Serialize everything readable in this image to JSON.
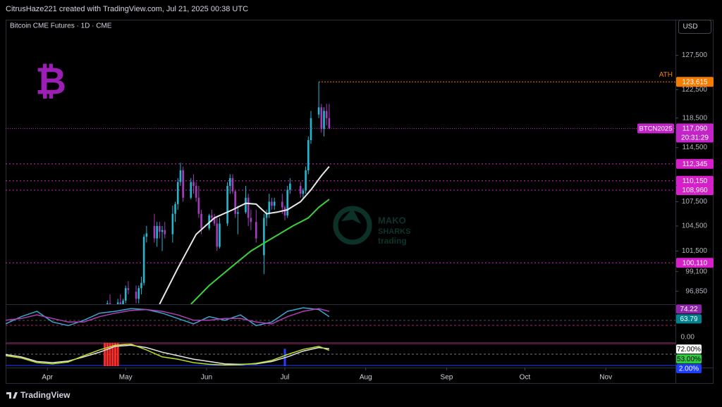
{
  "header": "CitrusHaze221 created with TradingView.com, Jul 21, 2025 00:38 UTC",
  "footer": "TradingView",
  "chart_data": {
    "type": "candlestick",
    "title": "Bitcoin CME Futures · 1D · CME",
    "currency": "USD",
    "watermark": {
      "symbol": "₿",
      "brand": [
        "MAKO",
        "SHARKS",
        "trading"
      ]
    },
    "log": true,
    "grid": false,
    "up_color": "#22b8cf",
    "down_color": "#a73cbc",
    "xlim": [
      -16,
      240.7
    ],
    "xticks": [
      {
        "value": 0,
        "label": "Apr"
      },
      {
        "value": 30,
        "label": "May"
      },
      {
        "value": 61,
        "label": "Jun"
      },
      {
        "value": 91,
        "label": "Jul"
      },
      {
        "value": 122,
        "label": "Aug"
      },
      {
        "value": 153,
        "label": "Sep"
      },
      {
        "value": 183,
        "label": "Oct"
      },
      {
        "value": 214,
        "label": "Nov"
      }
    ],
    "ylim": [
      95400,
      132900
    ],
    "yticks": [
      {
        "value": 96850,
        "label": "96,850"
      },
      {
        "value": 99100,
        "label": "99,100"
      },
      {
        "value": 101500,
        "label": "101,500"
      },
      {
        "value": 104500,
        "label": "104,500"
      },
      {
        "value": 107500,
        "label": "107,500"
      },
      {
        "value": 114500,
        "label": "114,500"
      },
      {
        "value": 118500,
        "label": "118,500"
      },
      {
        "value": 122500,
        "label": "122,500"
      },
      {
        "value": 127500,
        "label": "127,500"
      }
    ],
    "x": [
      23,
      24,
      27,
      28,
      29,
      30,
      31,
      34,
      35,
      36,
      37,
      38,
      41,
      42,
      43,
      44,
      45,
      48,
      49,
      50,
      51,
      52,
      55,
      56,
      57,
      58,
      59,
      62,
      63,
      64,
      65,
      66,
      69,
      70,
      71,
      72,
      73,
      76,
      77,
      78,
      80,
      83,
      84,
      85,
      86,
      87,
      90,
      91,
      92,
      93,
      97,
      98,
      99,
      100,
      101,
      104,
      105,
      106,
      107,
      108
    ],
    "open": [
      94500,
      95500,
      95200,
      95600,
      95000,
      95800,
      97200,
      96800,
      96000,
      97200,
      97800,
      103200,
      104500,
      103000,
      104500,
      103800,
      104000,
      103500,
      106000,
      107200,
      110000,
      111500,
      108000,
      110000,
      109500,
      108000,
      106000,
      104200,
      105800,
      105500,
      104800,
      102000,
      104800,
      109500,
      110500,
      108800,
      106000,
      106200,
      108000,
      105500,
      105000,
      101000,
      105500,
      106000,
      107500,
      107000,
      107500,
      106800,
      105800,
      109000,
      109500,
      108500,
      108900,
      111500,
      115500,
      119000,
      120000,
      117000,
      119500,
      118500
    ],
    "high": [
      95800,
      96500,
      96000,
      96500,
      96000,
      97500,
      98000,
      97500,
      97500,
      98500,
      103500,
      104500,
      106000,
      105000,
      105000,
      104500,
      105000,
      107000,
      107500,
      110500,
      112500,
      112000,
      110500,
      111000,
      110000,
      109500,
      106500,
      106000,
      106500,
      106000,
      105500,
      105500,
      110000,
      111000,
      111000,
      109000,
      107000,
      109500,
      108500,
      106500,
      106500,
      106000,
      106500,
      108500,
      108000,
      108000,
      108500,
      107000,
      109500,
      110500,
      110000,
      109200,
      112000,
      116000,
      119500,
      123615,
      120500,
      120000,
      120500,
      120500
    ],
    "low": [
      93800,
      94800,
      94000,
      94800,
      93500,
      95500,
      96500,
      95500,
      95500,
      96500,
      97500,
      102500,
      102500,
      102000,
      103000,
      101500,
      103000,
      102500,
      105000,
      106500,
      109500,
      107500,
      107800,
      108500,
      107500,
      105500,
      103500,
      104000,
      105000,
      104500,
      101500,
      101800,
      104500,
      108500,
      108500,
      105500,
      103500,
      106000,
      104500,
      104000,
      102500,
      98800,
      104500,
      105500,
      106500,
      106500,
      106000,
      105200,
      105500,
      108500,
      108000,
      108000,
      108500,
      111000,
      115000,
      118500,
      116500,
      116000,
      117500,
      117000
    ],
    "close": [
      95500,
      95200,
      95600,
      95000,
      95800,
      97200,
      97000,
      96000,
      97200,
      97800,
      103200,
      103600,
      103000,
      104500,
      103800,
      104000,
      103500,
      106000,
      107200,
      110000,
      111500,
      108000,
      110000,
      109500,
      108000,
      106000,
      104200,
      105800,
      105500,
      104800,
      102000,
      104800,
      109500,
      110500,
      108800,
      106000,
      106200,
      108000,
      105500,
      105000,
      103000,
      105500,
      106000,
      107500,
      107000,
      107500,
      106800,
      105800,
      109000,
      109800,
      108500,
      108900,
      111500,
      115500,
      118500,
      120000,
      117000,
      119500,
      118500,
      117090
    ],
    "overlays": [
      {
        "color": "#e8e8e8",
        "x": [
          43,
          50,
          57,
          64,
          71,
          76,
          80,
          84,
          88,
          92,
          97,
          101,
          105,
          108
        ],
        "values": [
          95400,
          99500,
          103500,
          105500,
          106500,
          107300,
          107200,
          106000,
          106200,
          106500,
          107500,
          109000,
          110800,
          112000
        ]
      },
      {
        "color": "#3ccf3c",
        "x": [
          55,
          62,
          70,
          78,
          86,
          94,
          100,
          104,
          108
        ],
        "values": [
          95400,
          97500,
          99500,
          101500,
          103000,
          104500,
          105500,
          106800,
          107800
        ]
      }
    ],
    "ath": {
      "value": 123615,
      "label": "123,615",
      "text": "ATH",
      "color": "#f57c00"
    },
    "last": {
      "value": 117090,
      "label": "117,090",
      "symbol": "BTCN2025",
      "countdown": "20:31:29",
      "color": "#c224c8"
    },
    "levels": [
      {
        "value": 112345,
        "label": "112,345",
        "color": "#d51fc9"
      },
      {
        "value": 110150,
        "label": "110,150",
        "color": "#d51fc9"
      },
      {
        "value": 108960,
        "label": "108,960",
        "color": "#d51fc9"
      },
      {
        "value": 100110,
        "label": "100,110",
        "color": "#d51fc9"
      }
    ],
    "indicators": [
      {
        "ylim": [
          50,
          80
        ],
        "series": [
          {
            "color": "#3aa6d0",
            "x": [
              -16,
              -10,
              -4,
              2,
              8,
              14,
              20,
              26,
              32,
              38,
              44,
              50,
              56,
              62,
              68,
              74,
              80,
              86,
              92,
              98,
              104,
              108
            ],
            "values": [
              58,
              66,
              72,
              60,
              56,
              62,
              70,
              72,
              75,
              74,
              70,
              64,
              58,
              66,
              62,
              68,
              56,
              60,
              72,
              76,
              74,
              66
            ]
          },
          {
            "color": "#b03fb5",
            "x": [
              -16,
              -10,
              -4,
              2,
              8,
              14,
              20,
              26,
              32,
              38,
              44,
              50,
              56,
              62,
              68,
              74,
              80,
              86,
              92,
              98,
              104,
              108
            ],
            "values": [
              62,
              64,
              68,
              64,
              60,
              60,
              66,
              70,
              73,
              74,
              72,
              68,
              62,
              62,
              64,
              64,
              60,
              58,
              66,
              72,
              75,
              72
            ]
          }
        ],
        "tags": [
          {
            "value": 74.22,
            "color": "#8e24aa",
            "text_color": "#ffffff"
          },
          {
            "value": 63.79,
            "color": "#00838f",
            "text_color": "#ffffff"
          }
        ]
      },
      {
        "ylim": [
          0,
          100
        ],
        "top_label": "0.00",
        "series": [
          {
            "color": "#e8e8e8",
            "x": [
              -16,
              -10,
              -4,
              2,
              8,
              14,
              20,
              26,
              32,
              38,
              44,
              50,
              56,
              62,
              68,
              74,
              80,
              86,
              92,
              98,
              104,
              108
            ],
            "values": [
              50,
              40,
              20,
              15,
              22,
              40,
              60,
              85,
              90,
              80,
              60,
              45,
              30,
              20,
              10,
              8,
              10,
              20,
              40,
              65,
              80,
              75
            ]
          },
          {
            "color": "#b8e02a",
            "x": [
              -16,
              -10,
              -4,
              2,
              8,
              14,
              20,
              26,
              32,
              38,
              44,
              50,
              56,
              62,
              68,
              74,
              80,
              86,
              92,
              98,
              104,
              108
            ],
            "values": [
              45,
              35,
              15,
              10,
              18,
              45,
              70,
              90,
              95,
              70,
              40,
              30,
              15,
              8,
              5,
              6,
              12,
              25,
              50,
              72,
              85,
              68
            ]
          }
        ],
        "bars": [
          {
            "color": "#ff2a2a",
            "x": [
              22,
              23,
              24,
              25,
              26,
              27
            ],
            "values": [
              100,
              100,
              100,
              100,
              100,
              100
            ]
          },
          {
            "color": "#2a3dff",
            "x": [
              91
            ],
            "values": [
              75
            ]
          }
        ],
        "tags": [
          {
            "value": 72,
            "label": "72.00%",
            "color": "#ffffff",
            "text_color": "#000000"
          },
          {
            "value": 53,
            "label": "53.00%",
            "color": "#2ecc40",
            "text_color": "#000000"
          },
          {
            "value": 2,
            "label": "2.00%",
            "color": "#1e3cff",
            "text_color": "#ffffff"
          }
        ]
      }
    ]
  }
}
